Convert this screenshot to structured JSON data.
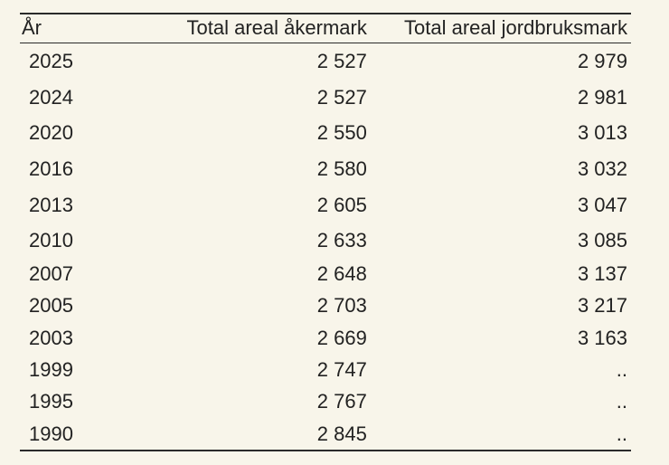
{
  "table": {
    "headers": [
      "År",
      "Total areal åkermark",
      "Total areal jordbruksmark"
    ],
    "rows": [
      [
        "2025",
        "2 527",
        "2 979"
      ],
      [
        "2024",
        "2 527",
        "2 981"
      ],
      [
        "2020",
        "2 550",
        "3 013"
      ],
      [
        "2016",
        "2 580",
        "3 032"
      ],
      [
        "2013",
        "2 605",
        "3 047"
      ],
      [
        "2010",
        "2 633",
        "3 085"
      ],
      [
        "2007",
        "2 648",
        "3 137"
      ],
      [
        "2005",
        "2 703",
        "3 217"
      ],
      [
        "2003",
        "2 669",
        "3 163"
      ],
      [
        "1999",
        "2 747",
        ".."
      ],
      [
        "1995",
        "2 767",
        ".."
      ],
      [
        "1990",
        "2 845",
        ".."
      ]
    ]
  }
}
